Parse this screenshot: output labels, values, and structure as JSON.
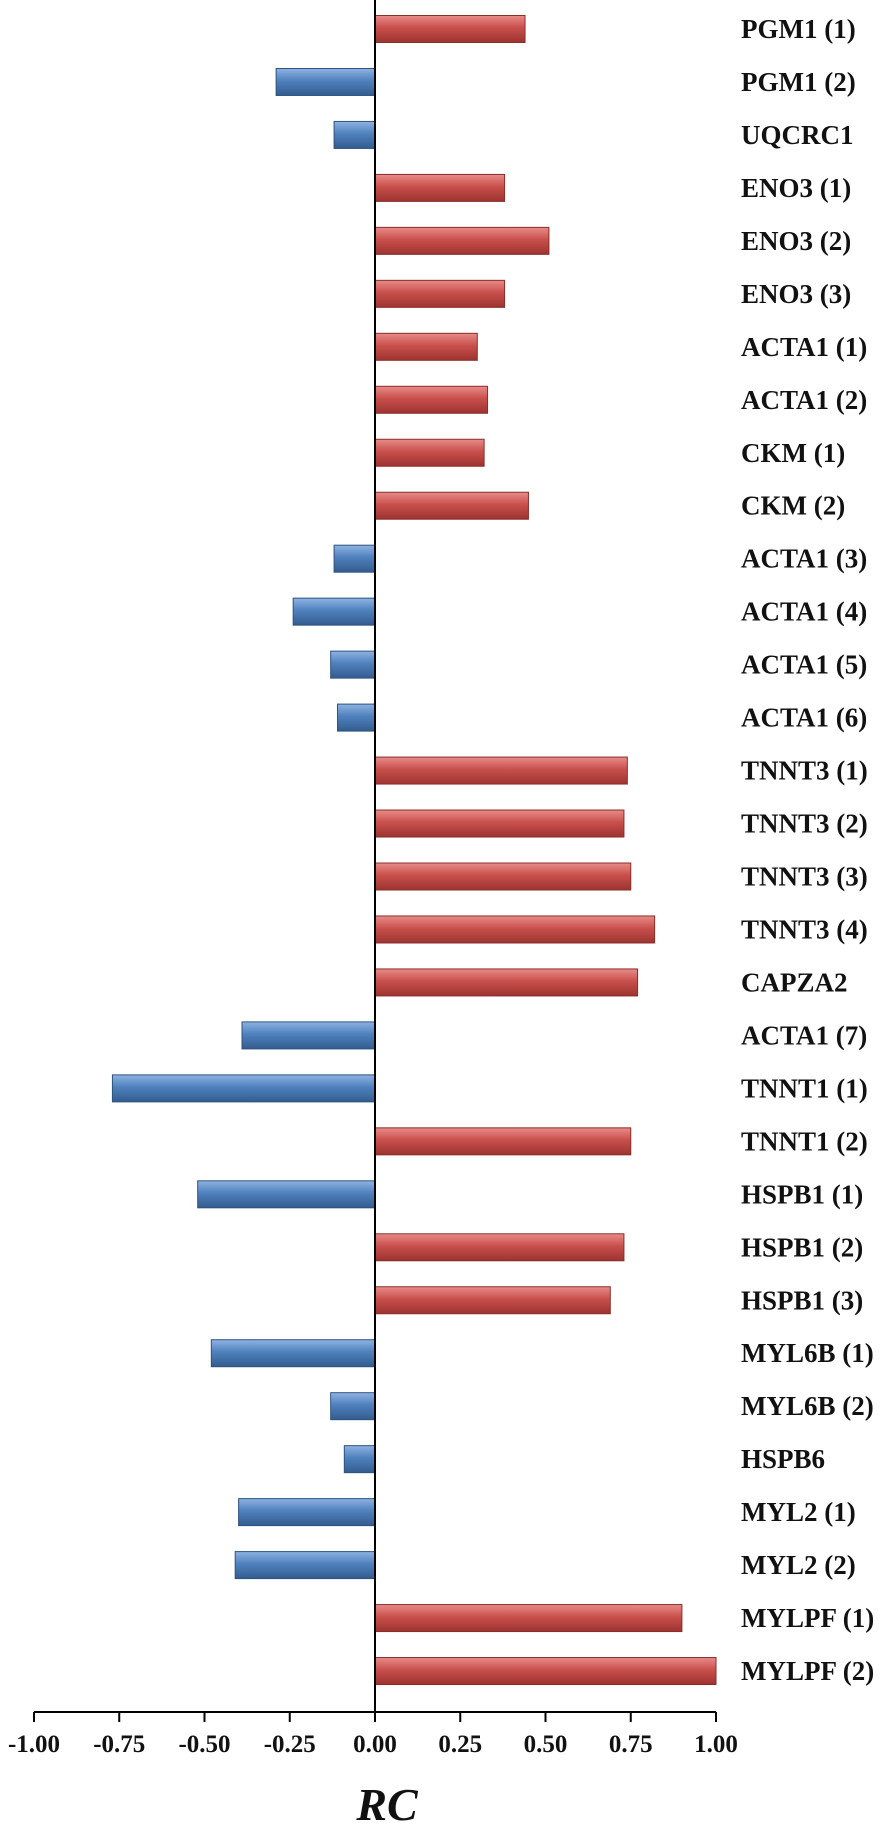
{
  "chart_data": {
    "type": "bar",
    "orientation": "horizontal",
    "xlabel": "RC",
    "xlim": [
      -1.0,
      1.0
    ],
    "xticks": [
      "-1.00",
      "-0.75",
      "-0.50",
      "-0.25",
      "0.00",
      "0.25",
      "0.50",
      "0.75",
      "1.00"
    ],
    "xtick_values": [
      -1.0,
      -0.75,
      -0.5,
      -0.25,
      0.0,
      0.25,
      0.5,
      0.75,
      1.0
    ],
    "colors": {
      "positive": "#c0504d",
      "negative": "#4f81bd"
    },
    "categories": [
      "PGM1 (1)",
      "PGM1 (2)",
      "UQCRC1",
      "ENO3 (1)",
      "ENO3 (2)",
      "ENO3 (3)",
      "ACTA1 (1)",
      "ACTA1 (2)",
      "CKM (1)",
      "CKM (2)",
      "ACTA1 (3)",
      "ACTA1 (4)",
      "ACTA1 (5)",
      "ACTA1 (6)",
      "TNNT3 (1)",
      "TNNT3 (2)",
      "TNNT3 (3)",
      "TNNT3 (4)",
      "CAPZA2",
      "ACTA1 (7)",
      "TNNT1 (1)",
      "TNNT1 (2)",
      "HSPB1 (1)",
      "HSPB1 (2)",
      "HSPB1 (3)",
      "MYL6B (1)",
      "MYL6B (2)",
      "HSPB6",
      "MYL2 (1)",
      "MYL2 (2)",
      "MYLPF (1)",
      "MYLPF (2)"
    ],
    "values": [
      0.44,
      -0.29,
      -0.12,
      0.38,
      0.51,
      0.38,
      0.3,
      0.33,
      0.32,
      0.45,
      -0.12,
      -0.24,
      -0.13,
      -0.11,
      0.74,
      0.73,
      0.75,
      0.82,
      0.77,
      -0.39,
      -0.77,
      0.75,
      -0.52,
      0.73,
      0.69,
      -0.48,
      -0.13,
      -0.09,
      -0.4,
      -0.41,
      0.9,
      1.0
    ]
  }
}
